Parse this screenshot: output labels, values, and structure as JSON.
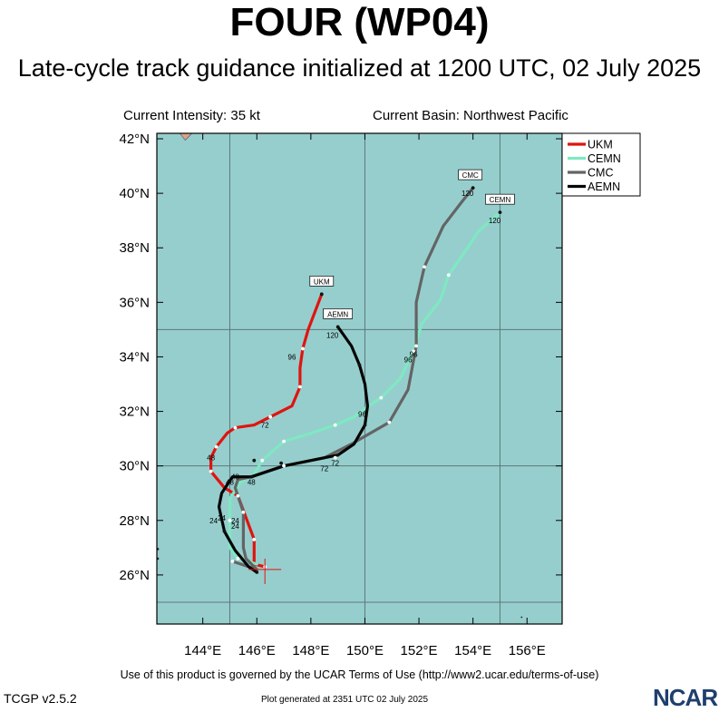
{
  "header": {
    "title": "FOUR (WP04)",
    "subtitle": "Late-cycle track guidance initialized at 1200 UTC, 02 July 2025",
    "intensity": "Current Intensity: 35 kt",
    "basin": "Current Basin: Northwest Pacific"
  },
  "footer": {
    "terms": "Use of this product is governed by the UCAR Terms of Use (http://www2.ucar.edu/terms-of-use)",
    "version": "TCGP v2.5.2",
    "generated": "Plot generated at 2351 UTC   02 July 2025",
    "logo": "NCAR"
  },
  "colors": {
    "ocean": "#96cecd",
    "land": "#d9a38c",
    "grid": "#5d7878",
    "UKM": "#e0140f",
    "CEMN": "#7fe8c2",
    "CMC": "#646464",
    "AEMN": "#050505"
  },
  "chart_data": {
    "type": "line",
    "xlim": [
      142.3,
      157.3
    ],
    "ylim": [
      24.2,
      42.2
    ],
    "x_ticks": [
      144,
      146,
      148,
      150,
      152,
      154,
      156
    ],
    "x_tick_labels": [
      "144°E",
      "146°E",
      "148°E",
      "150°E",
      "152°E",
      "154°E",
      "156°E"
    ],
    "y_ticks": [
      26,
      28,
      30,
      32,
      34,
      36,
      38,
      40,
      42
    ],
    "y_tick_labels": [
      "26°N",
      "28°N",
      "30°N",
      "32°N",
      "34°N",
      "36°N",
      "38°N",
      "40°N",
      "42°N"
    ],
    "gridlines_lon": [
      145,
      150,
      155
    ],
    "gridlines_lat": [
      25,
      30,
      35
    ],
    "legend_position": "top-right",
    "current_position": [
      146.3,
      26.2
    ],
    "series": [
      {
        "name": "UKM",
        "points": [
          [
            146.3,
            26.3
          ],
          [
            145.9,
            26.4
          ],
          [
            145.9,
            27.3
          ],
          [
            145.3,
            28.9
          ],
          [
            144.8,
            29.2
          ],
          [
            144.3,
            29.8
          ],
          [
            144.3,
            30.3
          ],
          [
            144.5,
            30.7
          ],
          [
            144.9,
            31.2
          ],
          [
            145.2,
            31.4
          ],
          [
            145.9,
            31.5
          ],
          [
            146.5,
            31.8
          ],
          [
            147.3,
            32.2
          ],
          [
            147.6,
            32.9
          ],
          [
            147.6,
            33.6
          ],
          [
            147.7,
            34.3
          ],
          [
            147.9,
            35.0
          ],
          [
            148.4,
            36.3
          ]
        ],
        "markers": [
          [
            146.3,
            26.3
          ],
          [
            145.9,
            27.3
          ],
          [
            145.3,
            28.9
          ],
          [
            144.3,
            29.8
          ],
          [
            144.5,
            30.7
          ],
          [
            145.2,
            31.4
          ],
          [
            146.5,
            31.8
          ],
          [
            147.6,
            32.9
          ],
          [
            147.7,
            34.3
          ],
          [
            148.4,
            36.3
          ]
        ],
        "tag": "UKM",
        "tag_at": [
          148.4,
          36.3
        ],
        "hour_labels": [
          {
            "text": "24",
            "at": [
              145.2,
              28.0
            ]
          },
          {
            "text": "48",
            "at": [
              144.3,
              30.3
            ]
          },
          {
            "text": "72",
            "at": [
              146.3,
              31.5
            ]
          },
          {
            "text": "96",
            "at": [
              147.3,
              34.0
            ]
          }
        ]
      },
      {
        "name": "CEMN",
        "points": [
          [
            146.0,
            26.4
          ],
          [
            145.3,
            26.6
          ],
          [
            145.0,
            27.0
          ],
          [
            145.0,
            28.0
          ],
          [
            145.0,
            28.8
          ],
          [
            145.4,
            29.4
          ],
          [
            145.9,
            29.7
          ],
          [
            146.2,
            30.2
          ],
          [
            147.0,
            30.9
          ],
          [
            148.0,
            31.2
          ],
          [
            148.9,
            31.5
          ],
          [
            149.6,
            31.8
          ],
          [
            150.0,
            32.1
          ],
          [
            150.6,
            32.5
          ],
          [
            151.3,
            33.2
          ],
          [
            151.8,
            34.2
          ],
          [
            152.1,
            35.2
          ],
          [
            152.8,
            36.1
          ],
          [
            153.1,
            37.0
          ],
          [
            153.8,
            38.0
          ],
          [
            154.2,
            38.6
          ],
          [
            155.0,
            39.3
          ]
        ],
        "markers": [
          [
            145.3,
            26.6
          ],
          [
            145.0,
            28.0
          ],
          [
            146.2,
            30.2
          ],
          [
            147.0,
            30.9
          ],
          [
            148.9,
            31.5
          ],
          [
            150.6,
            32.5
          ],
          [
            151.8,
            34.2
          ],
          [
            153.1,
            37.0
          ],
          [
            155.0,
            39.3
          ]
        ],
        "tag": "CEMN",
        "tag_at": [
          155.0,
          39.3
        ],
        "hour_labels": [
          {
            "text": "24",
            "at": [
              144.7,
              28.1
            ]
          },
          {
            "text": "48",
            "at": [
              145.8,
              29.4
            ]
          },
          {
            "text": "96",
            "at": [
              151.6,
              33.9
            ]
          },
          {
            "text": "120",
            "at": [
              154.8,
              39.0
            ]
          }
        ]
      },
      {
        "name": "CMC",
        "points": [
          [
            145.1,
            26.5
          ],
          [
            146.0,
            26.2
          ],
          [
            145.6,
            26.6
          ],
          [
            145.5,
            27.0
          ],
          [
            145.5,
            28.3
          ],
          [
            145.2,
            29.2
          ],
          [
            145.3,
            29.5
          ],
          [
            145.8,
            29.6
          ],
          [
            147.0,
            30.0
          ],
          [
            148.5,
            30.3
          ],
          [
            149.5,
            30.8
          ],
          [
            150.2,
            31.2
          ],
          [
            150.9,
            31.6
          ],
          [
            151.6,
            32.8
          ],
          [
            151.9,
            34.4
          ],
          [
            151.9,
            36.0
          ],
          [
            152.2,
            37.3
          ],
          [
            152.9,
            38.8
          ],
          [
            153.6,
            39.7
          ],
          [
            154.0,
            40.2
          ]
        ],
        "markers": [
          [
            145.1,
            26.5
          ],
          [
            145.5,
            28.3
          ],
          [
            147.0,
            30.0
          ],
          [
            148.9,
            30.3
          ],
          [
            150.9,
            31.6
          ],
          [
            151.9,
            34.4
          ],
          [
            152.2,
            37.3
          ],
          [
            154.0,
            40.2
          ]
        ],
        "tag": "CMC",
        "tag_at": [
          153.9,
          40.2
        ],
        "hour_labels": [
          {
            "text": "24",
            "at": [
              145.2,
              27.8
            ]
          },
          {
            "text": "48",
            "at": [
              145.0,
              29.4
            ]
          },
          {
            "text": "72",
            "at": [
              148.9,
              30.1
            ]
          },
          {
            "text": "96",
            "at": [
              151.8,
              34.1
            ]
          },
          {
            "text": "120",
            "at": [
              153.8,
              40.0
            ]
          }
        ]
      },
      {
        "name": "AEMN",
        "points": [
          [
            146.0,
            26.1
          ],
          [
            145.7,
            26.3
          ],
          [
            145.2,
            26.9
          ],
          [
            144.8,
            27.6
          ],
          [
            144.6,
            28.5
          ],
          [
            144.7,
            29.0
          ],
          [
            145.1,
            29.6
          ],
          [
            145.8,
            29.6
          ],
          [
            146.4,
            29.8
          ],
          [
            147.0,
            30.0
          ],
          [
            148.0,
            30.2
          ],
          [
            149.0,
            30.4
          ],
          [
            149.6,
            30.8
          ],
          [
            150.0,
            31.5
          ],
          [
            150.1,
            32.2
          ],
          [
            150.0,
            33.0
          ],
          [
            149.8,
            33.7
          ],
          [
            149.5,
            34.4
          ],
          [
            149.0,
            35.1
          ]
        ],
        "markers": [
          [
            146.0,
            26.1
          ],
          [
            144.8,
            27.6
          ],
          [
            145.8,
            29.6
          ],
          [
            145.9,
            30.2
          ],
          [
            146.9,
            30.1
          ],
          [
            149.0,
            30.4
          ],
          [
            150.0,
            31.5
          ],
          [
            149.8,
            33.7
          ],
          [
            149.0,
            35.1
          ]
        ],
        "tag": "AEMN",
        "tag_at": [
          149.0,
          35.1
        ],
        "hour_labels": [
          {
            "text": "24",
            "at": [
              144.4,
              28.0
            ]
          },
          {
            "text": "48",
            "at": [
              145.2,
              29.6
            ]
          },
          {
            "text": "72",
            "at": [
              148.5,
              29.9
            ]
          },
          {
            "text": "96",
            "at": [
              149.9,
              31.9
            ]
          },
          {
            "text": "120",
            "at": [
              148.8,
              34.8
            ]
          }
        ]
      }
    ]
  }
}
